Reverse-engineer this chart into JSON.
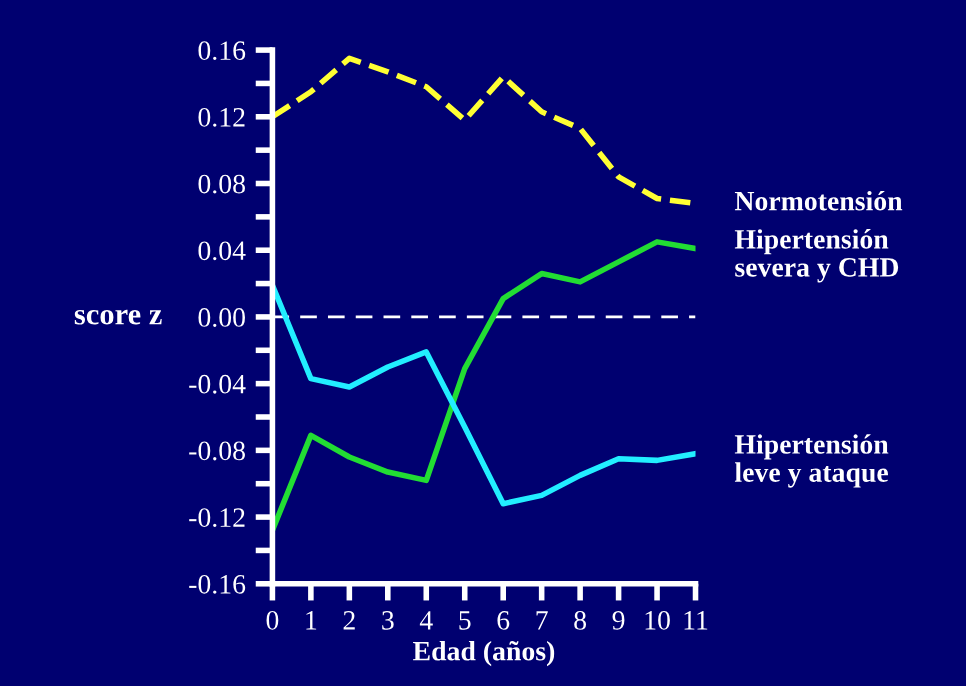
{
  "chart_data": {
    "type": "line",
    "xlabel": "Edad (años)",
    "ylabel": "score z",
    "x": [
      0,
      1,
      2,
      3,
      4,
      5,
      6,
      7,
      8,
      9,
      10,
      11
    ],
    "xlim": [
      0,
      11
    ],
    "xticks": [
      0,
      1,
      2,
      3,
      4,
      5,
      6,
      7,
      8,
      9,
      10,
      11
    ],
    "ylim": [
      -0.16,
      0.16
    ],
    "yticks": [
      {
        "value": -0.16,
        "label": "-0.16"
      },
      {
        "value": -0.14,
        "label": null
      },
      {
        "value": -0.12,
        "label": "-0.12"
      },
      {
        "value": -0.1,
        "label": null
      },
      {
        "value": -0.08,
        "label": "-0.08"
      },
      {
        "value": -0.06,
        "label": null
      },
      {
        "value": -0.04,
        "label": "-0.04"
      },
      {
        "value": -0.02,
        "label": null
      },
      {
        "value": 0,
        "label": "0.00"
      },
      {
        "value": 0.02,
        "label": null
      },
      {
        "value": 0.04,
        "label": "0.04"
      },
      {
        "value": 0.06,
        "label": null
      },
      {
        "value": 0.08,
        "label": "0.08"
      },
      {
        "value": 0.1,
        "label": null
      },
      {
        "value": 0.12,
        "label": "0.12"
      },
      {
        "value": 0.14,
        "label": null
      },
      {
        "value": 0.16,
        "label": "0.16"
      }
    ],
    "grid": false,
    "legend": false,
    "marker": "none",
    "ref_lines": [
      {
        "axis": "y",
        "value": 0,
        "color": "#ffffff",
        "line_style": "dashed"
      }
    ],
    "series": [
      {
        "name": "Normotensión",
        "color": "#ffff33",
        "line_style": "dashed",
        "values": [
          0.12,
          0.135,
          0.155,
          0.147,
          0.138,
          0.118,
          0.144,
          0.123,
          0.113,
          0.084,
          0.071,
          0.068
        ]
      },
      {
        "name": "Hipertensión severa y CHD",
        "color": "#22dd33",
        "line_style": "solid",
        "values": [
          -0.128,
          -0.071,
          -0.084,
          -0.093,
          -0.098,
          -0.031,
          0.011,
          0.026,
          0.021,
          0.033,
          0.045,
          0.041
        ]
      },
      {
        "name": "Hipertensión leve y ataque",
        "color": "#22eeff",
        "line_style": "solid",
        "values": [
          0.019,
          -0.037,
          -0.042,
          -0.03,
          -0.021,
          -0.066,
          -0.112,
          -0.107,
          -0.095,
          -0.085,
          -0.086,
          -0.082
        ]
      }
    ]
  }
}
